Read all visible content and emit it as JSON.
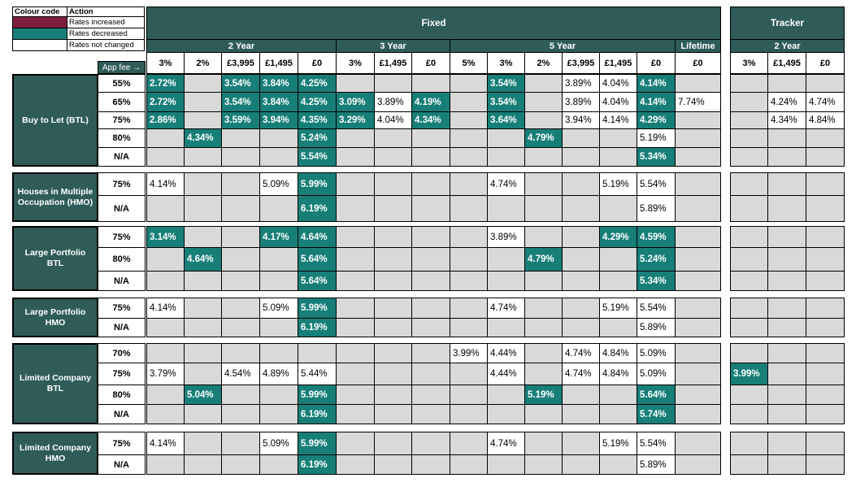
{
  "legend": {
    "header": [
      "Colour code",
      "Action"
    ],
    "items": [
      {
        "label": "Rates increased",
        "color": "#7b1f3c"
      },
      {
        "label": "Rates decreased",
        "color": "#177f78"
      },
      {
        "label": "Rates not changed",
        "color": "#ffffff"
      }
    ]
  },
  "header": {
    "fixed": {
      "label": "Fixed",
      "periods": [
        {
          "label": "2 Year",
          "fees": [
            "3%",
            "2%",
            "£3,995",
            "£1,495",
            "£0"
          ]
        },
        {
          "label": "3 Year",
          "fees": [
            "3%",
            "£1,495",
            "£0"
          ]
        },
        {
          "label": "5 Year",
          "fees": [
            "5%",
            "3%",
            "2%",
            "£3,995",
            "£1,495",
            "£0"
          ]
        },
        {
          "label": "Lifetime",
          "fees": [
            "£0"
          ]
        }
      ]
    },
    "tracker": {
      "label": "Tracker",
      "periods": [
        {
          "label": "2 Year",
          "fees": [
            "3%",
            "£1,495",
            "£0"
          ]
        }
      ]
    },
    "app_fee": "App fee →"
  },
  "groups": [
    {
      "label": "Buy to Let (BTL)",
      "rows": [
        {
          "ltv": "55%",
          "cells": [
            {
              "text": "2.72%",
              "change": "down"
            },
            null,
            {
              "text": "3.54%",
              "change": "down"
            },
            {
              "text": "3.84%",
              "change": "down"
            },
            {
              "text": "4.25%",
              "change": "down"
            },
            null,
            null,
            null,
            null,
            {
              "text": "3.54%",
              "change": "down"
            },
            null,
            {
              "text": "3.89%",
              "change": "none"
            },
            {
              "text": "4.04%",
              "change": "none"
            },
            {
              "text": "4.14%",
              "change": "down"
            },
            null,
            null,
            null,
            null
          ]
        },
        {
          "ltv": "65%",
          "cells": [
            {
              "text": "2.72%",
              "change": "down"
            },
            null,
            {
              "text": "3.54%",
              "change": "down"
            },
            {
              "text": "3.84%",
              "change": "down"
            },
            {
              "text": "4.25%",
              "change": "down"
            },
            {
              "text": "3.09%",
              "change": "down"
            },
            {
              "text": "3.89%",
              "change": "none"
            },
            {
              "text": "4.19%",
              "change": "down"
            },
            null,
            {
              "text": "3.54%",
              "change": "down"
            },
            null,
            {
              "text": "3.89%",
              "change": "none"
            },
            {
              "text": "4.04%",
              "change": "none"
            },
            {
              "text": "4.14%",
              "change": "down"
            },
            {
              "text": "7.74%",
              "change": "none"
            },
            null,
            {
              "text": "4.24%",
              "change": "none"
            },
            {
              "text": "4.74%",
              "change": "none"
            }
          ]
        },
        {
          "ltv": "75%",
          "cells": [
            {
              "text": "2.86%",
              "change": "down"
            },
            null,
            {
              "text": "3.59%",
              "change": "down"
            },
            {
              "text": "3.94%",
              "change": "down"
            },
            {
              "text": "4.35%",
              "change": "down"
            },
            {
              "text": "3.29%",
              "change": "down"
            },
            {
              "text": "4.04%",
              "change": "none"
            },
            {
              "text": "4.34%",
              "change": "down"
            },
            null,
            {
              "text": "3.64%",
              "change": "down"
            },
            null,
            {
              "text": "3.94%",
              "change": "none"
            },
            {
              "text": "4.14%",
              "change": "none"
            },
            {
              "text": "4.29%",
              "change": "down"
            },
            null,
            null,
            {
              "text": "4.34%",
              "change": "none"
            },
            {
              "text": "4.84%",
              "change": "none"
            }
          ]
        },
        {
          "ltv": "80%",
          "cells": [
            null,
            {
              "text": "4.34%",
              "change": "down"
            },
            null,
            null,
            {
              "text": "5.24%",
              "change": "down"
            },
            null,
            null,
            null,
            null,
            null,
            {
              "text": "4.79%",
              "change": "down"
            },
            null,
            null,
            {
              "text": "5.19%",
              "change": "none"
            },
            null,
            null,
            null,
            null
          ]
        },
        {
          "ltv": "N/A",
          "cells": [
            null,
            null,
            null,
            null,
            {
              "text": "5.54%",
              "change": "down"
            },
            null,
            null,
            null,
            null,
            null,
            null,
            null,
            null,
            {
              "text": "5.34%",
              "change": "down"
            },
            null,
            null,
            null,
            null
          ]
        }
      ]
    },
    {
      "label": "Houses in Multiple Occupation (HMO)",
      "rows": [
        {
          "ltv": "75%",
          "cells": [
            {
              "text": "4.14%",
              "change": "none"
            },
            null,
            null,
            {
              "text": "5.09%",
              "change": "none"
            },
            {
              "text": "5.99%",
              "change": "down"
            },
            null,
            null,
            null,
            null,
            {
              "text": "4.74%",
              "change": "none"
            },
            null,
            null,
            {
              "text": "5.19%",
              "change": "none"
            },
            {
              "text": "5.54%",
              "change": "none"
            },
            null,
            null,
            null,
            null
          ]
        },
        {
          "ltv": "N/A",
          "cells": [
            null,
            null,
            null,
            null,
            {
              "text": "6.19%",
              "change": "down"
            },
            null,
            null,
            null,
            null,
            null,
            null,
            null,
            null,
            {
              "text": "5.89%",
              "change": "none"
            },
            null,
            null,
            null,
            null
          ]
        }
      ]
    },
    {
      "label": "Large Portfolio BTL",
      "rows": [
        {
          "ltv": "75%",
          "cells": [
            {
              "text": "3.14%",
              "change": "down"
            },
            null,
            null,
            {
              "text": "4.17%",
              "change": "down"
            },
            {
              "text": "4.64%",
              "change": "down"
            },
            null,
            null,
            null,
            null,
            {
              "text": "3.89%",
              "change": "none"
            },
            null,
            null,
            {
              "text": "4.29%",
              "change": "down"
            },
            {
              "text": "4.59%",
              "change": "down"
            },
            null,
            null,
            null,
            null
          ]
        },
        {
          "ltv": "80%",
          "cells": [
            null,
            {
              "text": "4.64%",
              "change": "down"
            },
            null,
            null,
            {
              "text": "5.64%",
              "change": "down"
            },
            null,
            null,
            null,
            null,
            null,
            {
              "text": "4.79%",
              "change": "down"
            },
            null,
            null,
            {
              "text": "5.24%",
              "change": "down"
            },
            null,
            null,
            null,
            null
          ]
        },
        {
          "ltv": "N/A",
          "cells": [
            null,
            null,
            null,
            null,
            {
              "text": "5.64%",
              "change": "down"
            },
            null,
            null,
            null,
            null,
            null,
            null,
            null,
            null,
            {
              "text": "5.34%",
              "change": "down"
            },
            null,
            null,
            null,
            null
          ]
        }
      ]
    },
    {
      "label": "Large Portfolio HMO",
      "rows": [
        {
          "ltv": "75%",
          "cells": [
            {
              "text": "4.14%",
              "change": "none"
            },
            null,
            null,
            {
              "text": "5.09%",
              "change": "none"
            },
            {
              "text": "5.99%",
              "change": "down"
            },
            null,
            null,
            null,
            null,
            {
              "text": "4.74%",
              "change": "none"
            },
            null,
            null,
            {
              "text": "5.19%",
              "change": "none"
            },
            {
              "text": "5.54%",
              "change": "none"
            },
            null,
            null,
            null,
            null
          ]
        },
        {
          "ltv": "N/A",
          "cells": [
            null,
            null,
            null,
            null,
            {
              "text": "6.19%",
              "change": "down"
            },
            null,
            null,
            null,
            null,
            null,
            null,
            null,
            null,
            {
              "text": "5.89%",
              "change": "none"
            },
            null,
            null,
            null,
            null
          ]
        }
      ]
    },
    {
      "label": "Limited Company BTL",
      "rows": [
        {
          "ltv": "70%",
          "cells": [
            null,
            null,
            null,
            null,
            null,
            null,
            null,
            null,
            {
              "text": "3.99%",
              "change": "none"
            },
            {
              "text": "4.44%",
              "change": "none"
            },
            null,
            {
              "text": "4.74%",
              "change": "none"
            },
            {
              "text": "4.84%",
              "change": "none"
            },
            {
              "text": "5.09%",
              "change": "none"
            },
            null,
            null,
            null,
            null
          ]
        },
        {
          "ltv": "75%",
          "cells": [
            {
              "text": "3.79%",
              "change": "none"
            },
            null,
            {
              "text": "4.54%",
              "change": "none"
            },
            {
              "text": "4.89%",
              "change": "none"
            },
            {
              "text": "5.44%",
              "change": "none"
            },
            null,
            null,
            null,
            null,
            {
              "text": "4.44%",
              "change": "none"
            },
            null,
            {
              "text": "4.74%",
              "change": "none"
            },
            {
              "text": "4.84%",
              "change": "none"
            },
            {
              "text": "5.09%",
              "change": "none"
            },
            null,
            {
              "text": "3.99%",
              "change": "down"
            },
            null,
            null
          ]
        },
        {
          "ltv": "80%",
          "cells": [
            null,
            {
              "text": "5.04%",
              "change": "down"
            },
            null,
            null,
            {
              "text": "5.99%",
              "change": "down"
            },
            null,
            null,
            null,
            null,
            null,
            {
              "text": "5.19%",
              "change": "down"
            },
            null,
            null,
            {
              "text": "5.64%",
              "change": "down"
            },
            null,
            null,
            null,
            null
          ]
        },
        {
          "ltv": "N/A",
          "cells": [
            null,
            null,
            null,
            null,
            {
              "text": "6.19%",
              "change": "down"
            },
            null,
            null,
            null,
            null,
            null,
            null,
            null,
            null,
            {
              "text": "5.74%",
              "change": "down"
            },
            null,
            null,
            null,
            null
          ]
        }
      ]
    },
    {
      "label": "Limited Company HMO",
      "rows": [
        {
          "ltv": "75%",
          "cells": [
            {
              "text": "4.14%",
              "change": "none"
            },
            null,
            null,
            {
              "text": "5.09%",
              "change": "none"
            },
            {
              "text": "5.99%",
              "change": "down"
            },
            null,
            null,
            null,
            null,
            {
              "text": "4.74%",
              "change": "none"
            },
            null,
            null,
            {
              "text": "5.19%",
              "change": "none"
            },
            {
              "text": "5.54%",
              "change": "none"
            },
            null,
            null,
            null,
            null
          ]
        },
        {
          "ltv": "N/A",
          "cells": [
            null,
            null,
            null,
            null,
            {
              "text": "6.19%",
              "change": "down"
            },
            null,
            null,
            null,
            null,
            null,
            null,
            null,
            null,
            {
              "text": "5.89%",
              "change": "none"
            },
            null,
            null,
            null,
            null
          ]
        }
      ]
    }
  ]
}
